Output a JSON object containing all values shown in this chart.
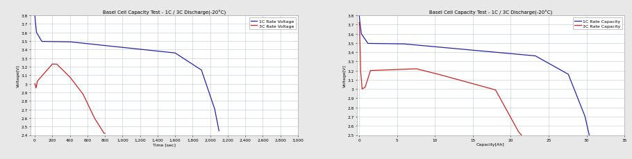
{
  "title_left": "Basel Cell Capacity Test - 1C / 3C Discharge(-20°C)",
  "title_right": "Basel Cell Capacity Test - 1C / 3C Discharge(-20°C)",
  "xlabel_left": "Time [sec]",
  "xlabel_right": "Capacity[Ah]",
  "ylabel_left": "Voltage[V]",
  "ylabel_right": "Voltage[V]",
  "legend_left": [
    "1C Rate Voltage",
    "3C Rate Voltage"
  ],
  "legend_right": [
    "1C Rate Capacity",
    "3C Rate Capacity"
  ],
  "color_1c": "#2222aa",
  "color_3c": "#cc2222",
  "bg_color": "#e8e8e8",
  "plot_bg_color": "#ffffff",
  "grid_color": "#c0c8d0",
  "line_width": 0.9,
  "title_fontsize": 5.0,
  "label_fontsize": 4.5,
  "tick_fontsize": 4.2,
  "legend_fontsize": 4.5
}
